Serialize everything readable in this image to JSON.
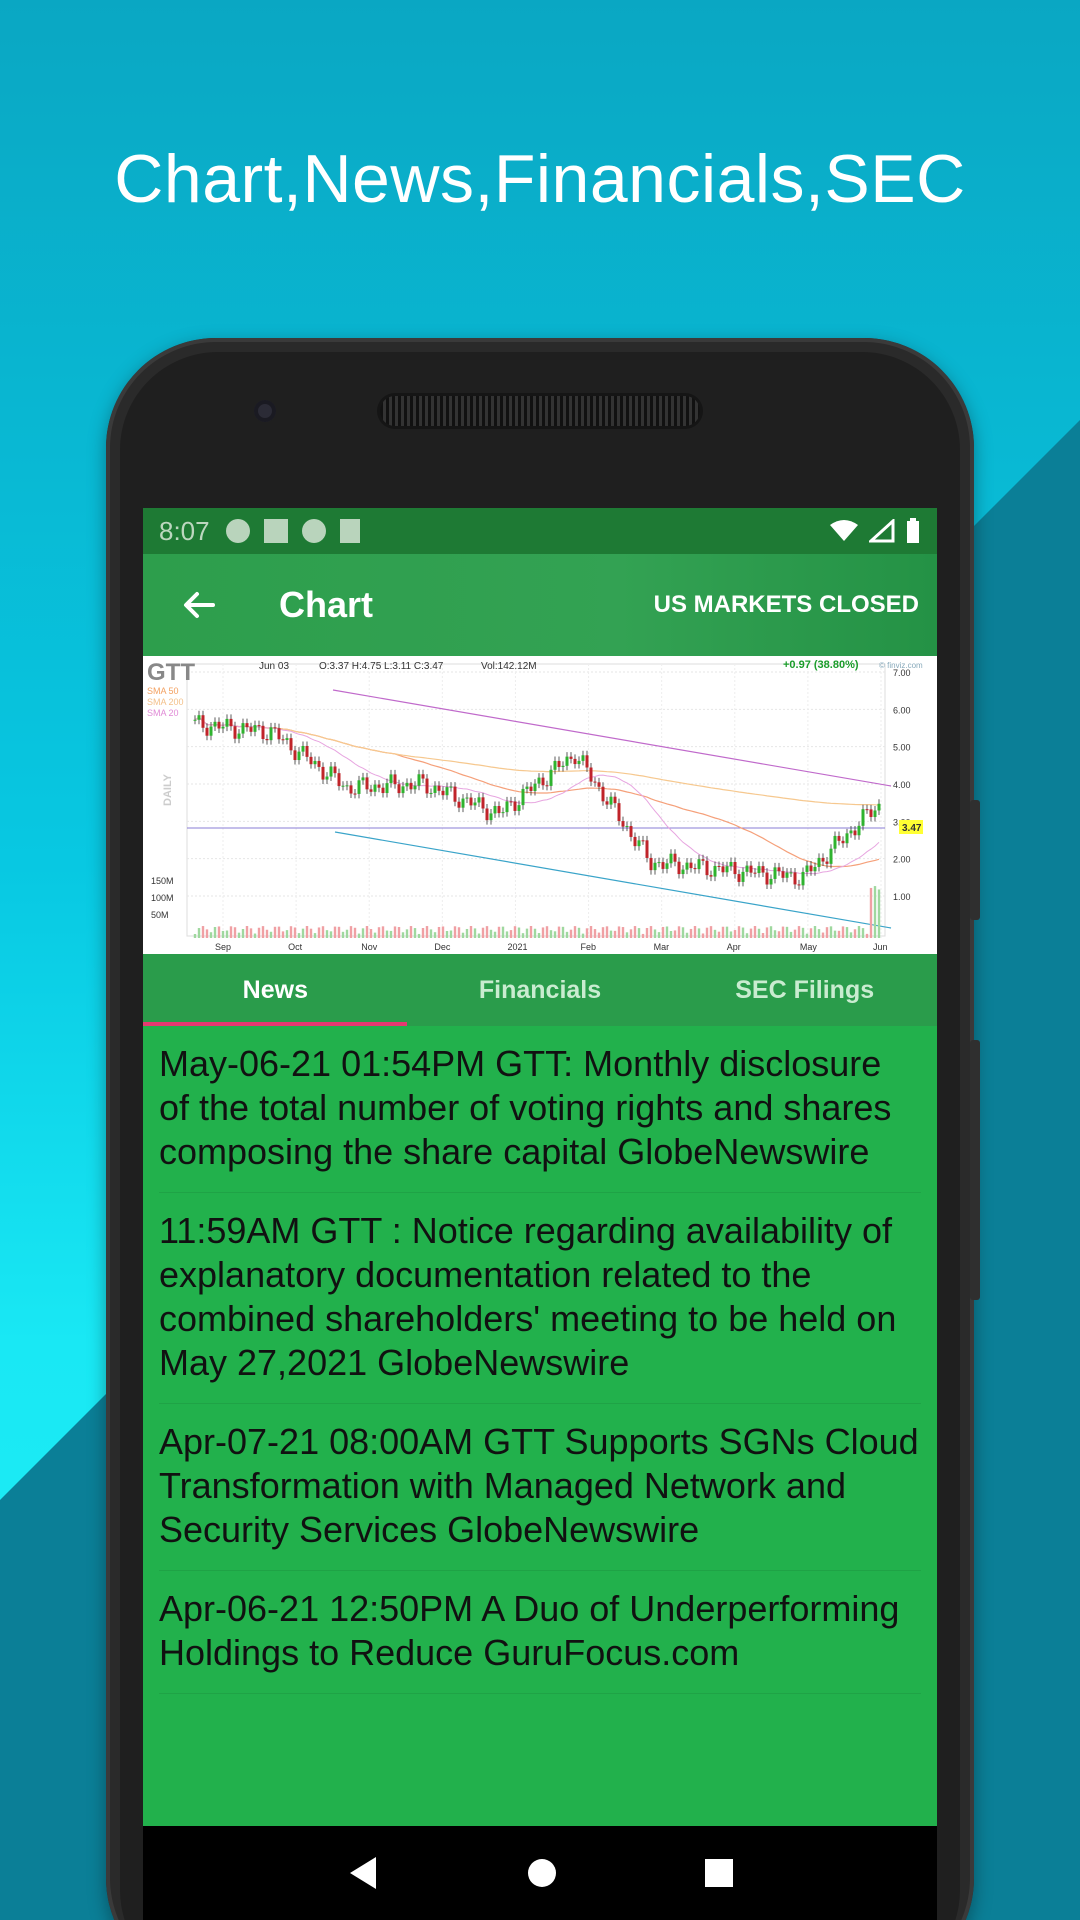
{
  "headline": "Chart,News,Financials,SEC",
  "statusbar": {
    "time": "8:07"
  },
  "appbar": {
    "title": "Chart",
    "market_status": "US MARKETS CLOSED"
  },
  "chart": {
    "ticker": "GTT",
    "date": "Jun 03",
    "ohlc": "O:3.37  H:4.75  L:3.11  C:3.47",
    "volume": "Vol:142.12M",
    "change": "+0.97 (38.80%)",
    "source": "© finviz.com",
    "period": "DAILY",
    "sma_labels": [
      "SMA 50",
      "SMA 200",
      "SMA 20"
    ],
    "last_price": "3.47",
    "y_ticks": [
      "7.00",
      "6.00",
      "5.00",
      "4.00",
      "3.00",
      "2.00",
      "1.00"
    ],
    "vol_ticks": [
      "150M",
      "100M",
      "50M"
    ],
    "x_ticks": [
      "Sep",
      "Oct",
      "Nov",
      "Dec",
      "2021",
      "Feb",
      "Mar",
      "Apr",
      "May",
      "Jun"
    ]
  },
  "chart_data": {
    "type": "line",
    "title": "GTT",
    "xlabel": "",
    "ylabel": "",
    "x": [
      "Sep",
      "Oct",
      "Nov",
      "Dec",
      "2021",
      "Feb",
      "Mar",
      "Apr",
      "May",
      "Jun"
    ],
    "series": [
      {
        "name": "GTT",
        "values": [
          5.6,
          5.4,
          3.9,
          4.0,
          3.2,
          4.8,
          1.9,
          1.7,
          1.5,
          3.47
        ]
      }
    ],
    "ylim": [
      1,
      7
    ]
  },
  "tabs": [
    {
      "label": "News",
      "active": true
    },
    {
      "label": "Financials",
      "active": false
    },
    {
      "label": "SEC Filings",
      "active": false
    }
  ],
  "news": [
    "May-06-21 01:54PM  GTT: Monthly disclosure of the total number of voting rights and shares composing the share capital GlobeNewswire",
    "11:59AM  GTT : Notice regarding availability of explanatory documentation related to the combined shareholders' meeting to be held on May 27,2021 GlobeNewswire",
    "Apr-07-21 08:00AM  GTT Supports SGNs Cloud Transformation with Managed Network and Security Services GlobeNewswire",
    "Apr-06-21 12:50PM  A Duo of Underperforming Holdings to Reduce GuruFocus.com"
  ],
  "colors": {
    "accent": "#e53970",
    "appbar": "#2d9e4c",
    "list_bg": "#22b14c"
  }
}
